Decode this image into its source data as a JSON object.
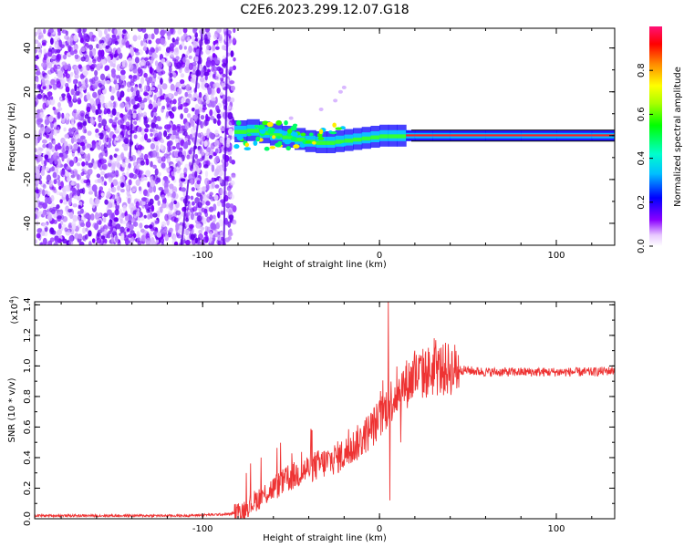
{
  "title": "C2E6.2023.299.12.07.G18",
  "chart_data": [
    {
      "type": "heatmap",
      "xlabel": "Height of straight line (km)",
      "ylabel": "Frequency (Hz)",
      "xlim": [
        -195,
        133
      ],
      "ylim": [
        -50,
        49
      ],
      "xticks": [
        -100,
        0,
        100
      ],
      "yticks": [
        -40,
        -20,
        0,
        20,
        40
      ],
      "xtick_labels": [
        "-100",
        "0",
        "100"
      ],
      "ytick_labels": [
        "-40",
        "-20",
        "0",
        "20",
        "40"
      ],
      "noise_region_x": [
        -195,
        -82
      ],
      "signal_trace": {
        "x": [
          -82,
          -75,
          -68,
          -62,
          -55,
          -48,
          -42,
          -36,
          -30,
          -25,
          -20,
          -15,
          -10,
          -5,
          0,
          5,
          10,
          15,
          20,
          30,
          40,
          60,
          80,
          100,
          120,
          133
        ],
        "y": [
          1,
          3,
          2,
          1,
          0,
          -1,
          -2,
          -3,
          -3,
          -3,
          -2,
          -2,
          -1,
          -1,
          0,
          0,
          0,
          0,
          0,
          0,
          0,
          0,
          0,
          0,
          0,
          0
        ]
      },
      "colorbar": {
        "label": "Normalized spectral amplitude",
        "range": [
          0,
          1
        ],
        "ticks": [
          0.0,
          0.2,
          0.4,
          0.6,
          0.8
        ],
        "tick_labels": [
          "0.0",
          "0.2",
          "0.4",
          "0.6",
          "0.8"
        ]
      }
    },
    {
      "type": "line",
      "xlabel": "Height of straight line (km)",
      "ylabel": "SNR (10 * v/v)",
      "y_scale_label": "(x10",
      "y_scale_exp": "4",
      "y_scale_close": ")",
      "xlim": [
        -195,
        133
      ],
      "ylim": [
        0,
        1.42
      ],
      "xticks": [
        -100,
        0,
        100
      ],
      "yticks": [
        0.0,
        0.2,
        0.4,
        0.6,
        0.8,
        1.0,
        1.2,
        1.4
      ],
      "xtick_labels": [
        "-100",
        "0",
        "100"
      ],
      "ytick_labels": [
        "0.0",
        "0.2",
        "0.4",
        "0.6",
        "0.8",
        "1.0",
        "1.2",
        "1.4"
      ],
      "color": "#ee3333",
      "series": [
        {
          "x": [
            -195,
            -150,
            -110,
            -85,
            -78,
            -70,
            -60,
            -50,
            -40,
            -30,
            -20,
            -10,
            0,
            5,
            10,
            20,
            30,
            40,
            50,
            60,
            80,
            100,
            120,
            133
          ],
          "values": [
            0.02,
            0.02,
            0.02,
            0.03,
            0.05,
            0.12,
            0.2,
            0.27,
            0.33,
            0.37,
            0.42,
            0.52,
            0.65,
            0.75,
            0.83,
            0.93,
            0.97,
            0.98,
            0.97,
            0.96,
            0.96,
            0.96,
            0.96,
            0.97
          ],
          "spikes": [
            {
              "x": 5,
              "y": 1.42
            },
            {
              "x": 5.8,
              "y": 0.12
            },
            {
              "x": 20,
              "y": 1.1
            },
            {
              "x": 12,
              "y": 0.5
            }
          ]
        }
      ]
    }
  ]
}
